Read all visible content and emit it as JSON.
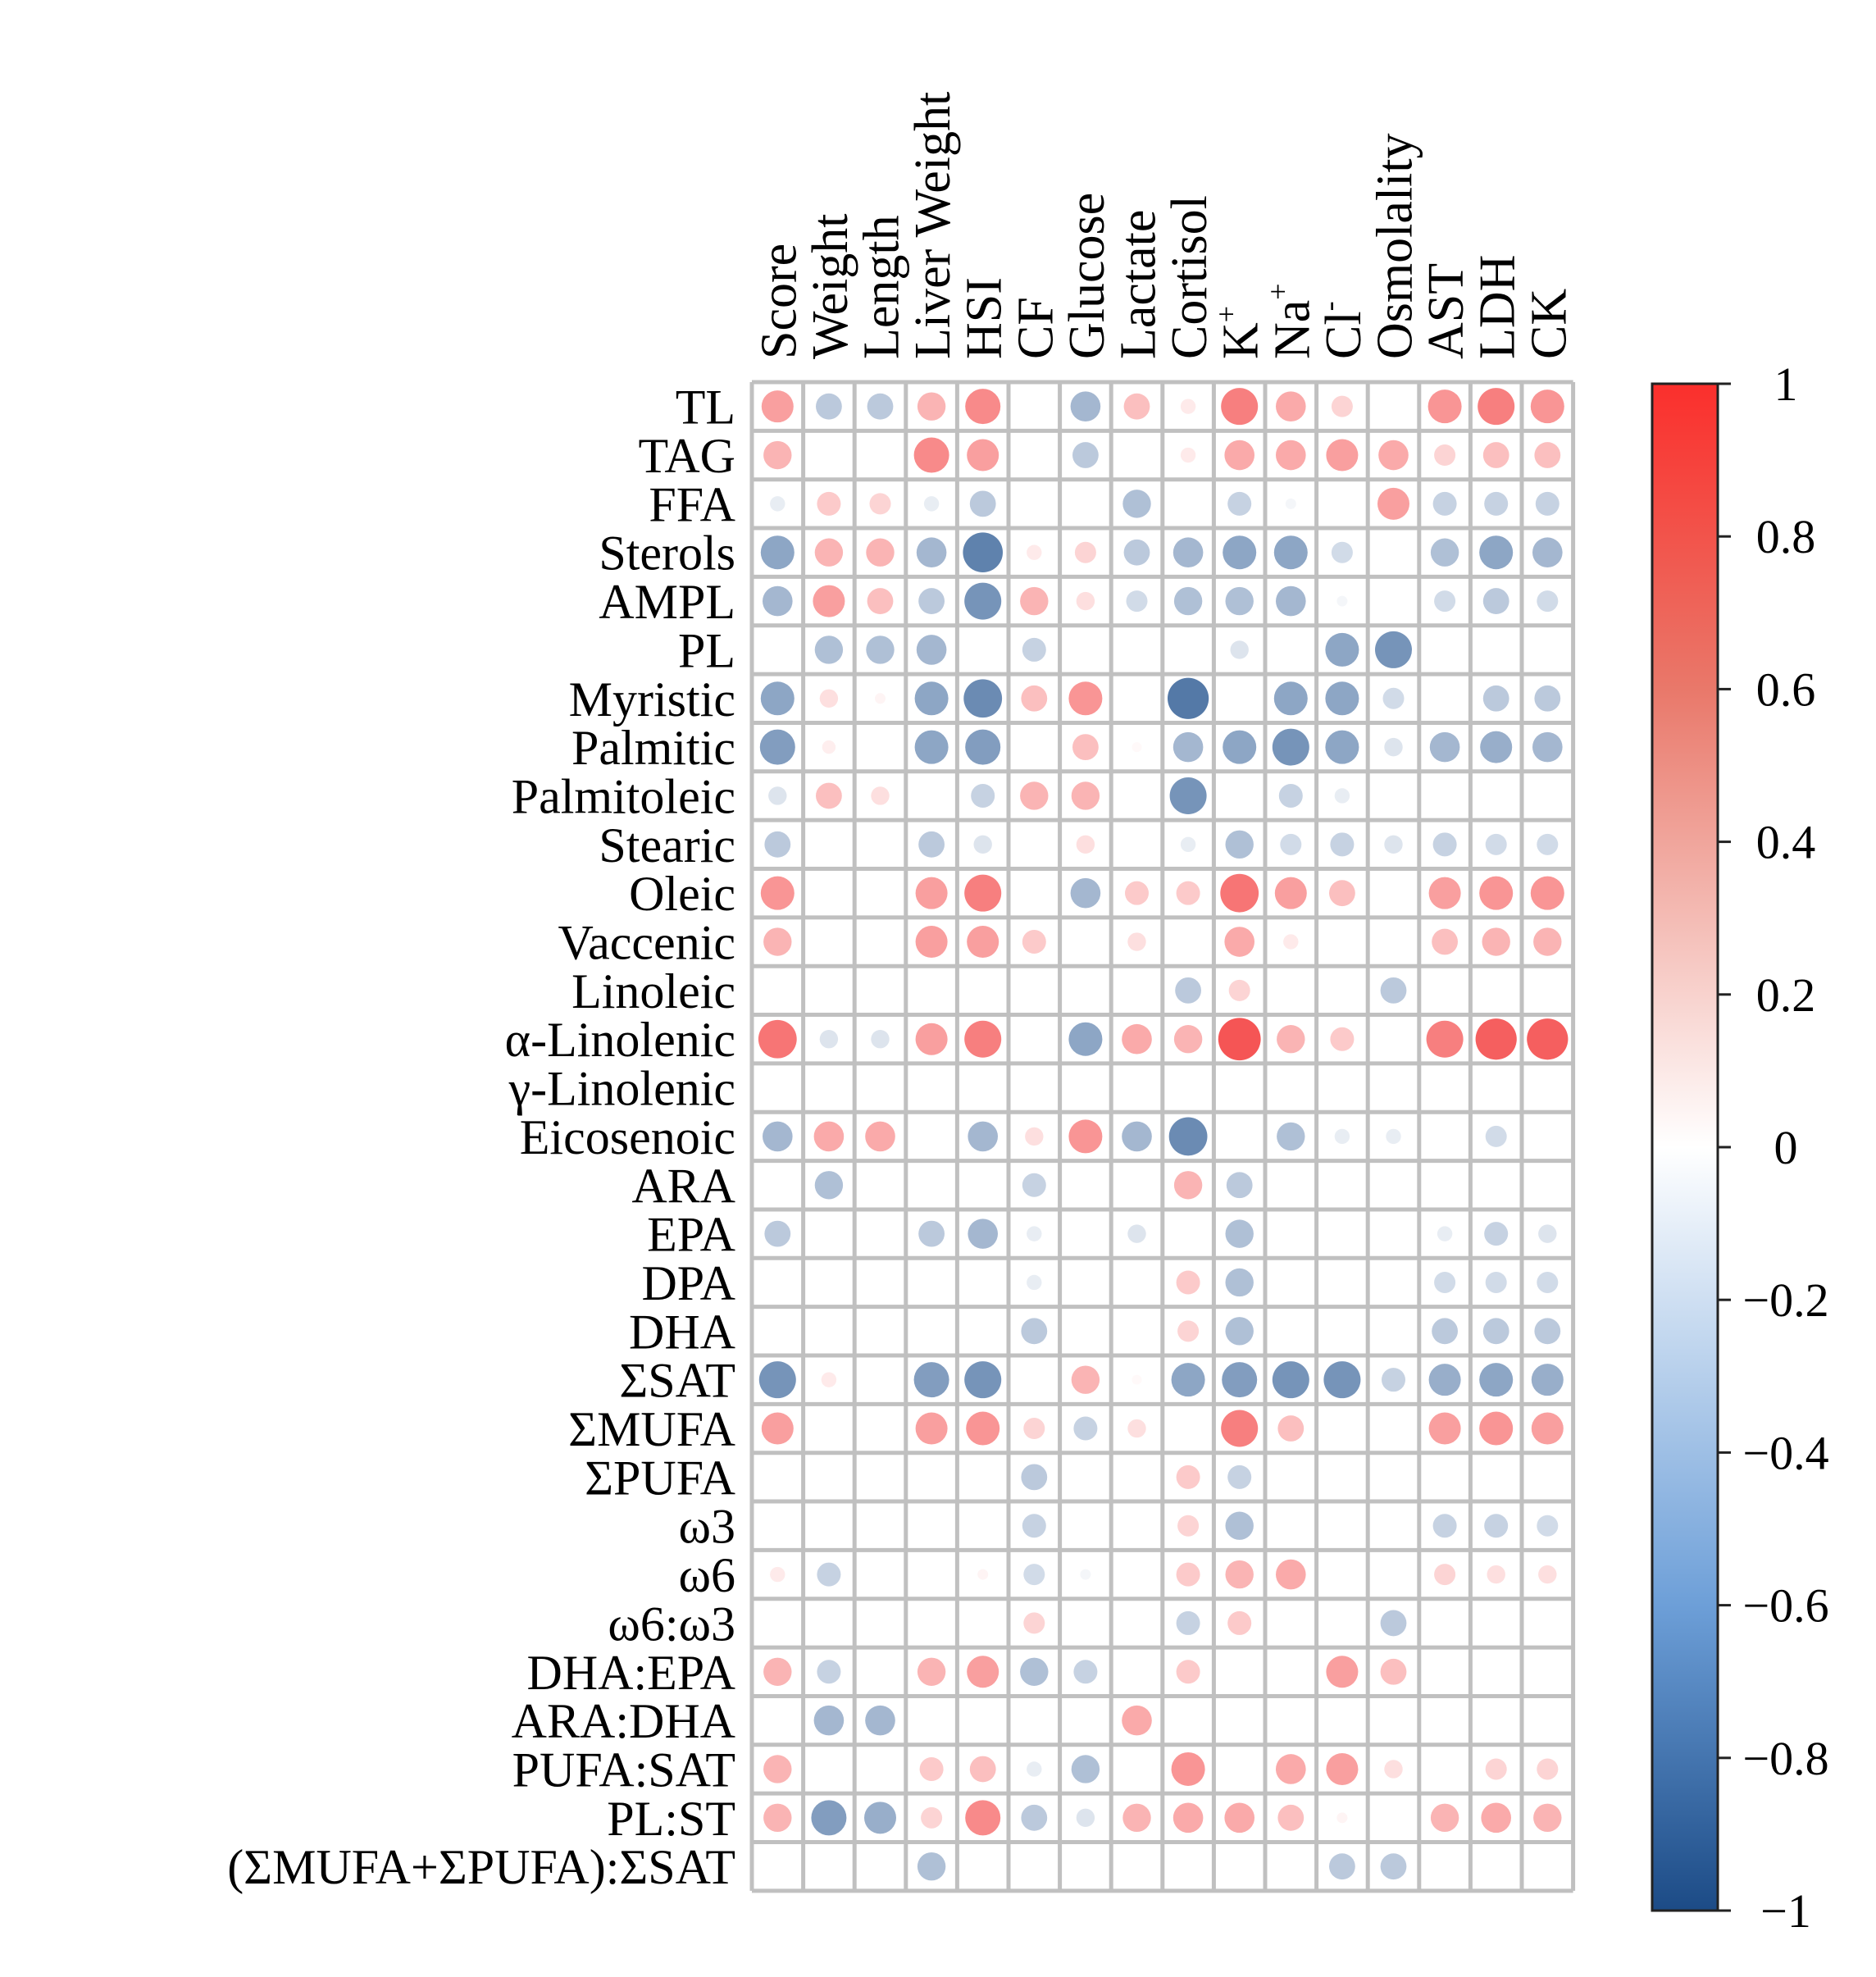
{
  "chart_data": {
    "type": "heatmap",
    "style": "circle-correlation-matrix",
    "columns": [
      {
        "label": "Score"
      },
      {
        "label": "Weight"
      },
      {
        "label": "Length"
      },
      {
        "label": "Liver Weight"
      },
      {
        "label": "HSI"
      },
      {
        "label": "CF"
      },
      {
        "label": "Glucose"
      },
      {
        "label": "Lactate"
      },
      {
        "label": "Cortisol"
      },
      {
        "label": "K",
        "sup": "+"
      },
      {
        "label": "Na",
        "sup": "+"
      },
      {
        "label": "Cl",
        "sup": "-"
      },
      {
        "label": "Osmolality"
      },
      {
        "label": "AST"
      },
      {
        "label": "LDH"
      },
      {
        "label": "CK"
      }
    ],
    "rows": [
      "TL",
      "TAG",
      "FFA",
      "Sterols",
      "AMPL",
      "PL",
      "Myristic",
      "Palmitic",
      "Palmitoleic",
      "Stearic",
      "Oleic",
      "Vaccenic",
      "Linoleic",
      "α-Linolenic",
      "γ-Linolenic",
      "Eicosenoic",
      "ARA",
      "EPA",
      "DPA",
      "DHA",
      "ΣSAT",
      "ΣMUFA",
      "ΣPUFA",
      "ω3",
      "ω6",
      "ω6:ω3",
      "DHA:EPA",
      "ARA:DHA",
      "PUFA:SAT",
      "PL:ST",
      "(ΣMUFA+ΣPUFA):ΣSAT"
    ],
    "values": [
      [
        0.45,
        -0.3,
        -0.3,
        0.35,
        0.55,
        0,
        -0.4,
        0.3,
        0.1,
        0.6,
        0.4,
        0.2,
        0,
        0.5,
        0.6,
        0.5
      ],
      [
        0.35,
        0,
        0,
        0.55,
        0.45,
        0,
        -0.3,
        0,
        0.1,
        0.4,
        0.4,
        0.45,
        0.4,
        0.2,
        0.3,
        0.3
      ],
      [
        -0.1,
        0.25,
        0.2,
        -0.1,
        -0.3,
        0,
        0,
        -0.35,
        0,
        -0.25,
        -0.05,
        0,
        0.45,
        -0.25,
        -0.25,
        -0.25
      ],
      [
        -0.5,
        0.35,
        0.35,
        -0.4,
        -0.7,
        0.1,
        0.2,
        -0.3,
        -0.4,
        -0.5,
        -0.5,
        -0.2,
        0,
        -0.35,
        -0.5,
        -0.4
      ],
      [
        -0.4,
        0.45,
        0.3,
        -0.3,
        -0.6,
        0.35,
        0.15,
        -0.2,
        -0.35,
        -0.35,
        -0.4,
        -0.05,
        0,
        -0.2,
        -0.3,
        -0.2
      ],
      [
        0,
        -0.35,
        -0.35,
        -0.4,
        0,
        -0.25,
        0,
        0,
        0,
        -0.15,
        0,
        -0.5,
        -0.6,
        0,
        0,
        0
      ],
      [
        -0.5,
        0.15,
        0.05,
        -0.5,
        -0.65,
        0.3,
        0.5,
        0,
        -0.75,
        0,
        -0.5,
        -0.5,
        -0.2,
        0,
        -0.3,
        -0.3
      ],
      [
        -0.55,
        0.08,
        0,
        -0.5,
        -0.55,
        0,
        0.3,
        0.03,
        -0.4,
        -0.5,
        -0.6,
        -0.5,
        -0.15,
        -0.4,
        -0.45,
        -0.4
      ],
      [
        -0.15,
        0.3,
        0.15,
        0,
        -0.25,
        0.35,
        0.35,
        0,
        -0.6,
        0,
        -0.25,
        -0.1,
        0,
        0,
        0,
        0
      ],
      [
        -0.3,
        0,
        0,
        -0.3,
        -0.15,
        0,
        0.15,
        0,
        -0.1,
        -0.35,
        -0.2,
        -0.25,
        -0.15,
        -0.25,
        -0.2,
        -0.2
      ],
      [
        0.5,
        0,
        0,
        0.45,
        0.6,
        0,
        -0.4,
        0.25,
        0.25,
        0.65,
        0.45,
        0.3,
        0,
        0.45,
        0.5,
        0.5
      ],
      [
        0.35,
        0,
        0,
        0.45,
        0.45,
        0.25,
        0,
        0.15,
        0,
        0.4,
        0.1,
        0,
        0,
        0.3,
        0.35,
        0.35
      ],
      [
        0,
        0,
        0,
        0,
        0,
        0,
        0,
        0,
        -0.3,
        0.2,
        0,
        0,
        -0.3,
        0,
        0,
        0
      ],
      [
        0.65,
        -0.15,
        -0.15,
        0.45,
        0.6,
        0,
        -0.5,
        0.4,
        0.35,
        0.8,
        0.35,
        0.25,
        0,
        0.6,
        0.75,
        0.75
      ],
      [
        0,
        0,
        0,
        0,
        0,
        0,
        0,
        0,
        0,
        0,
        0,
        0,
        0,
        0,
        0,
        0
      ],
      [
        -0.4,
        0.4,
        0.4,
        0,
        -0.4,
        0.15,
        0.5,
        -0.4,
        -0.65,
        0,
        -0.35,
        -0.1,
        -0.1,
        0,
        -0.2,
        0
      ],
      [
        0,
        -0.35,
        0,
        0,
        0,
        -0.25,
        0,
        0,
        0.35,
        -0.3,
        0,
        0,
        0,
        0,
        0,
        0
      ],
      [
        -0.3,
        0,
        0,
        -0.3,
        -0.4,
        -0.1,
        0,
        -0.15,
        0,
        -0.35,
        0,
        0,
        0,
        -0.1,
        -0.25,
        -0.15
      ],
      [
        0,
        0,
        0,
        0,
        0,
        -0.1,
        0,
        0,
        0.25,
        -0.35,
        0,
        0,
        0,
        -0.2,
        -0.2,
        -0.2
      ],
      [
        0,
        0,
        0,
        0,
        0,
        -0.3,
        0,
        0,
        0.2,
        -0.35,
        0,
        0,
        0,
        -0.3,
        -0.3,
        -0.3
      ],
      [
        -0.6,
        0.1,
        0,
        -0.55,
        -0.6,
        0,
        0.35,
        0.03,
        -0.5,
        -0.55,
        -0.6,
        -0.6,
        -0.25,
        -0.45,
        -0.5,
        -0.45
      ],
      [
        0.45,
        0,
        0,
        0.45,
        0.5,
        0.2,
        -0.25,
        0.15,
        0,
        0.6,
        0.3,
        0,
        0,
        0.45,
        0.5,
        0.45
      ],
      [
        0,
        0,
        0,
        0,
        0,
        -0.3,
        0,
        0,
        0.25,
        -0.25,
        0,
        0,
        0,
        0,
        0,
        0
      ],
      [
        0,
        0,
        0,
        0,
        0,
        -0.25,
        0,
        0,
        0.2,
        -0.35,
        0,
        0,
        0,
        -0.25,
        -0.25,
        -0.2
      ],
      [
        0.1,
        -0.25,
        0,
        0,
        0.05,
        -0.2,
        -0.05,
        0,
        0.25,
        0.35,
        0.4,
        0,
        0,
        0.2,
        0.15,
        0.15
      ],
      [
        0,
        0,
        0,
        0,
        0,
        0.2,
        0,
        0,
        -0.25,
        0.25,
        0,
        0,
        -0.3,
        0,
        0,
        0
      ],
      [
        0.35,
        -0.25,
        0,
        0.35,
        0.45,
        -0.35,
        -0.25,
        0,
        0.25,
        0,
        0,
        0.45,
        0.3,
        0,
        0,
        0
      ],
      [
        0,
        -0.4,
        -0.4,
        0,
        0,
        0,
        0,
        0.4,
        0,
        0,
        0,
        0,
        0,
        0,
        0,
        0
      ],
      [
        0.35,
        0,
        0,
        0.25,
        0.3,
        -0.1,
        -0.35,
        0,
        0.5,
        0,
        0.4,
        0.45,
        0.15,
        0,
        0.2,
        0.2
      ],
      [
        0.35,
        -0.55,
        -0.45,
        0.2,
        0.55,
        -0.3,
        -0.15,
        0.35,
        0.4,
        0.4,
        0.3,
        0.05,
        0,
        0.35,
        0.4,
        0.35
      ],
      [
        0,
        0,
        0,
        -0.35,
        0,
        0,
        0,
        0,
        0,
        0,
        0,
        -0.3,
        -0.3,
        0,
        0,
        0
      ]
    ],
    "colorbar": {
      "ticks": [
        "1",
        "0.8",
        "0.6",
        "0.4",
        "0.2",
        "0",
        "−0.2",
        "−0.4",
        "−0.6",
        "−0.8",
        "−1"
      ],
      "range": [
        -1,
        1
      ]
    },
    "colors": {
      "positive": "#f22a2a",
      "neutral": "#ffffff",
      "negative": "#1b4c8a",
      "grid": "#c0c0c0"
    }
  }
}
